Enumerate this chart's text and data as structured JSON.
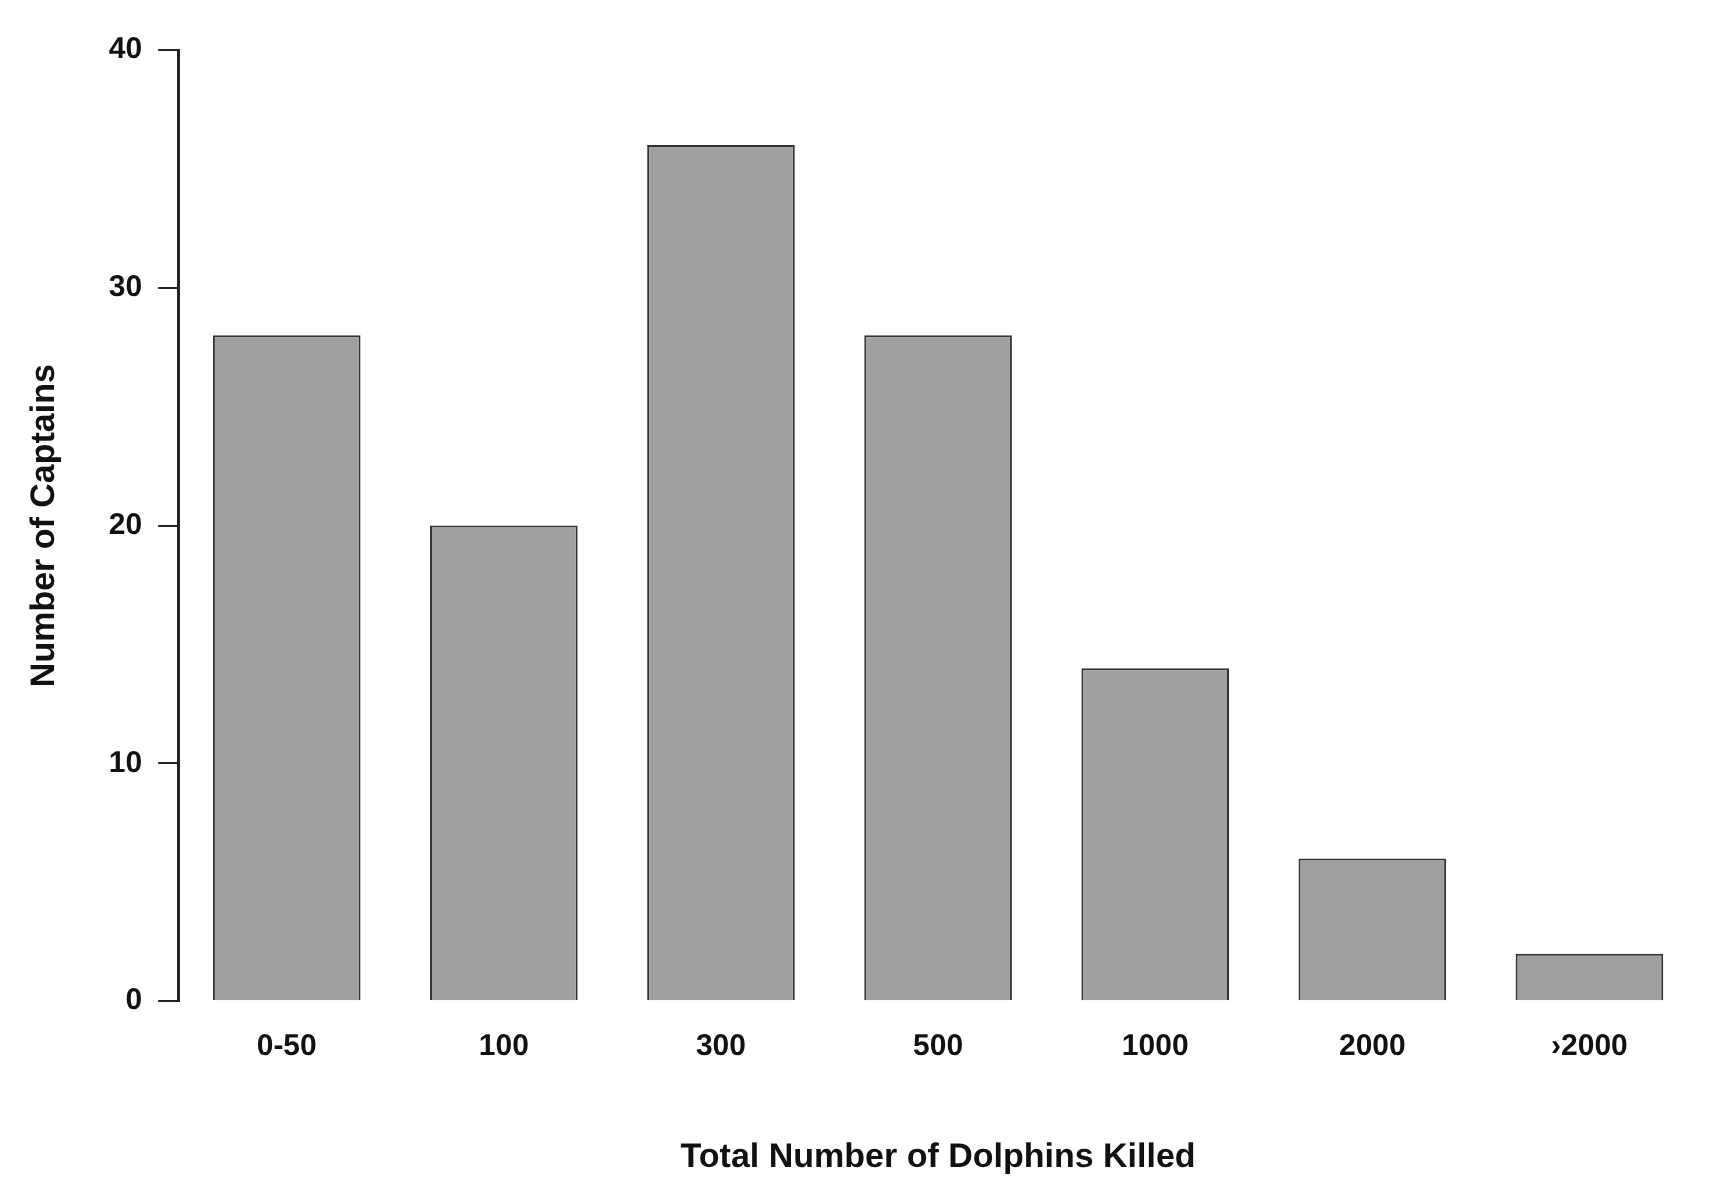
{
  "chart_data": {
    "type": "bar",
    "xlabel": "Total Number of Dolphins Killed",
    "ylabel": "Number of Captains",
    "categories": [
      "0-50",
      "100",
      "300",
      "500",
      "1000",
      "2000",
      "›2000"
    ],
    "values": [
      28,
      20,
      36,
      28,
      14,
      6,
      2
    ],
    "color": "#a0a0a0",
    "ylim": [
      0,
      40
    ],
    "yticks": [
      0,
      10,
      20,
      30,
      40
    ],
    "grid": false,
    "legend": false
  }
}
